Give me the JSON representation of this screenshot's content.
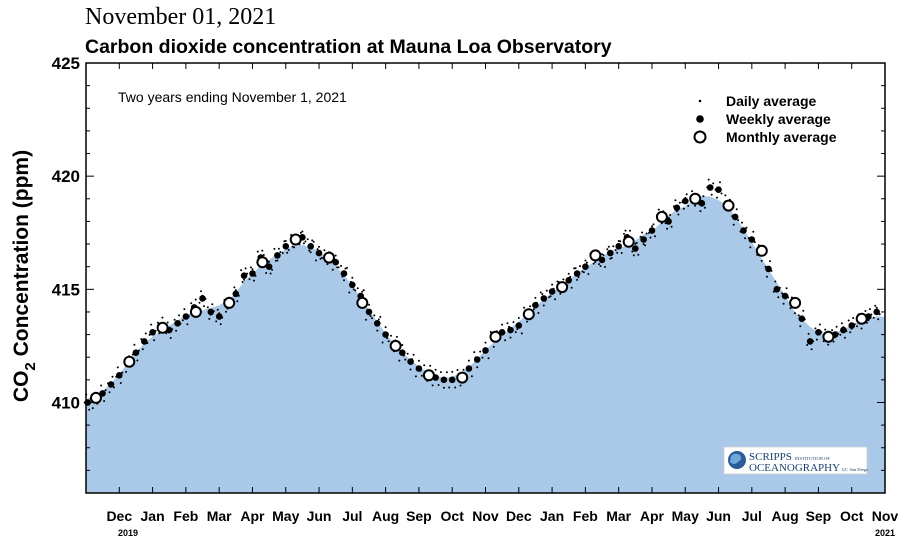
{
  "date_header": "November 01, 2021",
  "chart_data": {
    "type": "scatter",
    "title": "Carbon dioxide concentration at Mauna Loa Observatory",
    "subtitle": "Two years ending November 1, 2021",
    "ylabel": {
      "main": "CO",
      "sub": "2",
      "rest": " Concentration (ppm)"
    },
    "ylim": [
      406.0,
      425.0
    ],
    "yticks": [
      410,
      415,
      420,
      425
    ],
    "x_range_months": [
      0,
      24
    ],
    "month_labels": [
      {
        "label": "Dec",
        "x": 1
      },
      {
        "label": "Jan",
        "x": 2
      },
      {
        "label": "Feb",
        "x": 3
      },
      {
        "label": "Mar",
        "x": 4
      },
      {
        "label": "Apr",
        "x": 5
      },
      {
        "label": "May",
        "x": 6
      },
      {
        "label": "Jun",
        "x": 7
      },
      {
        "label": "Jul",
        "x": 8
      },
      {
        "label": "Aug",
        "x": 9
      },
      {
        "label": "Sep",
        "x": 10
      },
      {
        "label": "Oct",
        "x": 11
      },
      {
        "label": "Nov",
        "x": 12
      },
      {
        "label": "Dec",
        "x": 13
      },
      {
        "label": "Jan",
        "x": 14
      },
      {
        "label": "Feb",
        "x": 15
      },
      {
        "label": "Mar",
        "x": 16
      },
      {
        "label": "Apr",
        "x": 17
      },
      {
        "label": "May",
        "x": 18
      },
      {
        "label": "Jun",
        "x": 19
      },
      {
        "label": "Jul",
        "x": 20
      },
      {
        "label": "Aug",
        "x": 21
      },
      {
        "label": "Sep",
        "x": 22
      },
      {
        "label": "Oct",
        "x": 23
      },
      {
        "label": "Nov",
        "x": 24
      }
    ],
    "year_labels": [
      {
        "label": "2019",
        "x": 0
      },
      {
        "label": "2021",
        "x": 24
      }
    ],
    "legend": {
      "position": "top-right",
      "entries": [
        "Daily average",
        "Weekly average",
        "Monthly average"
      ]
    },
    "monthly_average": [
      {
        "x": 0.3,
        "y": 410.2
      },
      {
        "x": 1.3,
        "y": 411.8
      },
      {
        "x": 2.3,
        "y": 413.3
      },
      {
        "x": 3.3,
        "y": 414.0
      },
      {
        "x": 4.3,
        "y": 414.4
      },
      {
        "x": 5.3,
        "y": 416.2
      },
      {
        "x": 6.3,
        "y": 417.2
      },
      {
        "x": 7.3,
        "y": 416.4
      },
      {
        "x": 8.3,
        "y": 414.4
      },
      {
        "x": 9.3,
        "y": 412.5
      },
      {
        "x": 10.3,
        "y": 411.2
      },
      {
        "x": 11.3,
        "y": 411.1
      },
      {
        "x": 12.3,
        "y": 412.9
      },
      {
        "x": 13.3,
        "y": 413.9
      },
      {
        "x": 14.3,
        "y": 415.1
      },
      {
        "x": 15.3,
        "y": 416.5
      },
      {
        "x": 16.3,
        "y": 417.1
      },
      {
        "x": 17.3,
        "y": 418.2
      },
      {
        "x": 18.3,
        "y": 419.0
      },
      {
        "x": 19.3,
        "y": 418.7
      },
      {
        "x": 20.3,
        "y": 416.7
      },
      {
        "x": 21.3,
        "y": 414.4
      },
      {
        "x": 22.3,
        "y": 412.9
      },
      {
        "x": 23.3,
        "y": 413.7
      }
    ],
    "weekly_average": [
      {
        "x": 0.05,
        "y": 410.0
      },
      {
        "x": 0.25,
        "y": 410.1
      },
      {
        "x": 0.5,
        "y": 410.4
      },
      {
        "x": 0.75,
        "y": 410.8
      },
      {
        "x": 1.0,
        "y": 411.2
      },
      {
        "x": 1.25,
        "y": 411.7
      },
      {
        "x": 1.5,
        "y": 412.2
      },
      {
        "x": 1.75,
        "y": 412.7
      },
      {
        "x": 2.0,
        "y": 413.1
      },
      {
        "x": 2.25,
        "y": 413.4
      },
      {
        "x": 2.5,
        "y": 413.2
      },
      {
        "x": 2.75,
        "y": 413.5
      },
      {
        "x": 3.0,
        "y": 413.8
      },
      {
        "x": 3.25,
        "y": 414.2
      },
      {
        "x": 3.5,
        "y": 414.6
      },
      {
        "x": 3.75,
        "y": 414.0
      },
      {
        "x": 4.0,
        "y": 413.8
      },
      {
        "x": 4.25,
        "y": 414.3
      },
      {
        "x": 4.5,
        "y": 414.8
      },
      {
        "x": 4.75,
        "y": 415.6
      },
      {
        "x": 5.0,
        "y": 415.7
      },
      {
        "x": 5.25,
        "y": 416.4
      },
      {
        "x": 5.5,
        "y": 416.0
      },
      {
        "x": 5.75,
        "y": 416.5
      },
      {
        "x": 6.0,
        "y": 416.9
      },
      {
        "x": 6.25,
        "y": 417.1
      },
      {
        "x": 6.5,
        "y": 417.3
      },
      {
        "x": 6.75,
        "y": 416.9
      },
      {
        "x": 7.0,
        "y": 416.6
      },
      {
        "x": 7.25,
        "y": 416.4
      },
      {
        "x": 7.5,
        "y": 416.2
      },
      {
        "x": 7.75,
        "y": 415.7
      },
      {
        "x": 8.0,
        "y": 415.2
      },
      {
        "x": 8.25,
        "y": 414.7
      },
      {
        "x": 8.5,
        "y": 414.0
      },
      {
        "x": 8.75,
        "y": 413.5
      },
      {
        "x": 9.0,
        "y": 413.0
      },
      {
        "x": 9.25,
        "y": 412.6
      },
      {
        "x": 9.5,
        "y": 412.2
      },
      {
        "x": 9.75,
        "y": 411.8
      },
      {
        "x": 10.0,
        "y": 411.5
      },
      {
        "x": 10.25,
        "y": 411.3
      },
      {
        "x": 10.5,
        "y": 411.1
      },
      {
        "x": 10.75,
        "y": 411.0
      },
      {
        "x": 11.0,
        "y": 411.0
      },
      {
        "x": 11.25,
        "y": 411.1
      },
      {
        "x": 11.5,
        "y": 411.5
      },
      {
        "x": 11.75,
        "y": 411.9
      },
      {
        "x": 12.0,
        "y": 412.3
      },
      {
        "x": 12.25,
        "y": 412.8
      },
      {
        "x": 12.5,
        "y": 413.1
      },
      {
        "x": 12.75,
        "y": 413.2
      },
      {
        "x": 13.0,
        "y": 413.4
      },
      {
        "x": 13.25,
        "y": 413.9
      },
      {
        "x": 13.5,
        "y": 414.3
      },
      {
        "x": 13.75,
        "y": 414.6
      },
      {
        "x": 14.0,
        "y": 414.9
      },
      {
        "x": 14.25,
        "y": 415.1
      },
      {
        "x": 14.5,
        "y": 415.4
      },
      {
        "x": 14.75,
        "y": 415.7
      },
      {
        "x": 15.0,
        "y": 416.0
      },
      {
        "x": 15.25,
        "y": 416.4
      },
      {
        "x": 15.5,
        "y": 416.3
      },
      {
        "x": 15.75,
        "y": 416.6
      },
      {
        "x": 16.0,
        "y": 416.9
      },
      {
        "x": 16.25,
        "y": 417.3
      },
      {
        "x": 16.5,
        "y": 416.8
      },
      {
        "x": 16.75,
        "y": 417.2
      },
      {
        "x": 17.0,
        "y": 417.6
      },
      {
        "x": 17.25,
        "y": 418.2
      },
      {
        "x": 17.5,
        "y": 418.0
      },
      {
        "x": 17.75,
        "y": 418.6
      },
      {
        "x": 18.0,
        "y": 418.9
      },
      {
        "x": 18.25,
        "y": 419.0
      },
      {
        "x": 18.5,
        "y": 418.8
      },
      {
        "x": 18.75,
        "y": 419.5
      },
      {
        "x": 19.0,
        "y": 419.4
      },
      {
        "x": 19.25,
        "y": 418.8
      },
      {
        "x": 19.5,
        "y": 418.2
      },
      {
        "x": 19.75,
        "y": 417.6
      },
      {
        "x": 20.0,
        "y": 417.2
      },
      {
        "x": 20.25,
        "y": 416.6
      },
      {
        "x": 20.5,
        "y": 415.9
      },
      {
        "x": 20.75,
        "y": 415.0
      },
      {
        "x": 21.0,
        "y": 414.7
      },
      {
        "x": 21.25,
        "y": 414.3
      },
      {
        "x": 21.5,
        "y": 413.7
      },
      {
        "x": 21.75,
        "y": 412.7
      },
      {
        "x": 22.0,
        "y": 413.1
      },
      {
        "x": 22.25,
        "y": 412.9
      },
      {
        "x": 22.5,
        "y": 413.0
      },
      {
        "x": 22.75,
        "y": 413.2
      },
      {
        "x": 23.0,
        "y": 413.4
      },
      {
        "x": 23.25,
        "y": 413.6
      },
      {
        "x": 23.5,
        "y": 413.8
      },
      {
        "x": 23.75,
        "y": 414.0
      }
    ]
  },
  "logo": {
    "line1": "SCRIPPS",
    "line1_small": "INSTITUTION OF",
    "line2": "OCEANOGRAPHY",
    "line2_small": "UC San Diego"
  },
  "colors": {
    "fill": "#aac8e8",
    "axis": "#000000",
    "background": "#ffffff"
  }
}
